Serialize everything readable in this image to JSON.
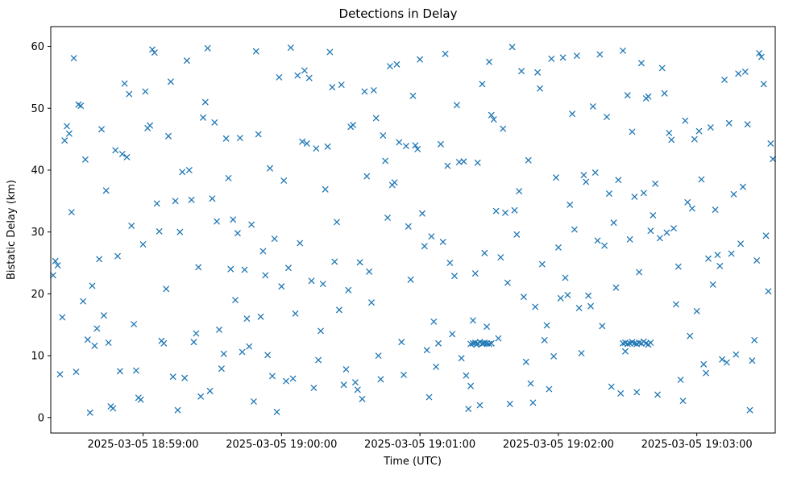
{
  "chart_data": {
    "type": "scatter",
    "title": "Detections in Delay",
    "xlabel": "Time (UTC)",
    "ylabel": "Bistatic Delay (km)",
    "marker": "x",
    "marker_color": "#1f77b4",
    "grid": false,
    "legend": "none",
    "x_unit": "seconds since 2025-03-05 18:58:00 UTC",
    "xlim": [
      20,
      334
    ],
    "ylim": [
      -2.5,
      63.2
    ],
    "x_ticks": [
      {
        "t": 60,
        "label": "2025-03-05 18:59:00"
      },
      {
        "t": 120,
        "label": "2025-03-05 19:00:00"
      },
      {
        "t": 180,
        "label": "2025-03-05 19:01:00"
      },
      {
        "t": 240,
        "label": "2025-03-05 19:02:00"
      },
      {
        "t": 300,
        "label": "2025-03-05 19:03:00"
      }
    ],
    "y_ticks": [
      0,
      10,
      20,
      30,
      40,
      50,
      60
    ],
    "points": [
      [
        21,
        23.0
      ],
      [
        22,
        25.3
      ],
      [
        23,
        24.6
      ],
      [
        24,
        7.0
      ],
      [
        25,
        16.2
      ],
      [
        26,
        44.8
      ],
      [
        27,
        47.1
      ],
      [
        28,
        45.9
      ],
      [
        29,
        33.2
      ],
      [
        30,
        58.1
      ],
      [
        31,
        7.4
      ],
      [
        32,
        50.6
      ],
      [
        33,
        50.4
      ],
      [
        34,
        18.8
      ],
      [
        35,
        41.7
      ],
      [
        36,
        12.6
      ],
      [
        37,
        0.8
      ],
      [
        38,
        21.3
      ],
      [
        39,
        11.6
      ],
      [
        40,
        14.4
      ],
      [
        41,
        25.6
      ],
      [
        42,
        46.6
      ],
      [
        43,
        16.5
      ],
      [
        44,
        36.7
      ],
      [
        45,
        12.1
      ],
      [
        46,
        1.8
      ],
      [
        47,
        1.5
      ],
      [
        48,
        43.2
      ],
      [
        49,
        26.1
      ],
      [
        50,
        7.5
      ],
      [
        51,
        42.6
      ],
      [
        52,
        54.0
      ],
      [
        53,
        42.1
      ],
      [
        54,
        52.3
      ],
      [
        55,
        31.0
      ],
      [
        56,
        15.1
      ],
      [
        57,
        7.6
      ],
      [
        58,
        3.2
      ],
      [
        59,
        2.9
      ],
      [
        60,
        28.0
      ],
      [
        61,
        52.7
      ],
      [
        62,
        46.8
      ],
      [
        63,
        47.2
      ],
      [
        64,
        59.5
      ],
      [
        65,
        59.0
      ],
      [
        66,
        34.6
      ],
      [
        67,
        30.1
      ],
      [
        68,
        12.4
      ],
      [
        69,
        12.0
      ],
      [
        70,
        20.8
      ],
      [
        71,
        45.5
      ],
      [
        72,
        54.3
      ],
      [
        73,
        6.6
      ],
      [
        74,
        35.0
      ],
      [
        75,
        1.2
      ],
      [
        76,
        30.0
      ],
      [
        77,
        39.7
      ],
      [
        78,
        6.4
      ],
      [
        79,
        57.7
      ],
      [
        80,
        40.0
      ],
      [
        81,
        35.2
      ],
      [
        82,
        12.2
      ],
      [
        83,
        13.6
      ],
      [
        84,
        24.3
      ],
      [
        85,
        3.4
      ],
      [
        86,
        48.5
      ],
      [
        87,
        51.0
      ],
      [
        88,
        59.7
      ],
      [
        89,
        4.3
      ],
      [
        90,
        35.4
      ],
      [
        91,
        47.7
      ],
      [
        92,
        31.7
      ],
      [
        93,
        14.2
      ],
      [
        94,
        7.9
      ],
      [
        95,
        10.3
      ],
      [
        96,
        45.1
      ],
      [
        97,
        38.7
      ],
      [
        98,
        24.0
      ],
      [
        99,
        32.0
      ],
      [
        100,
        19.0
      ],
      [
        101,
        29.8
      ],
      [
        102,
        45.2
      ],
      [
        103,
        10.6
      ],
      [
        104,
        23.9
      ],
      [
        105,
        16.0
      ],
      [
        106,
        11.5
      ],
      [
        107,
        31.2
      ],
      [
        108,
        2.6
      ],
      [
        109,
        59.2
      ],
      [
        110,
        45.8
      ],
      [
        111,
        16.3
      ],
      [
        112,
        26.9
      ],
      [
        113,
        23.0
      ],
      [
        114,
        10.1
      ],
      [
        115,
        40.3
      ],
      [
        116,
        6.7
      ],
      [
        117,
        28.9
      ],
      [
        118,
        0.9
      ],
      [
        119,
        55.0
      ],
      [
        120,
        21.2
      ],
      [
        121,
        38.3
      ],
      [
        122,
        5.9
      ],
      [
        123,
        24.2
      ],
      [
        124,
        59.8
      ],
      [
        125,
        6.3
      ],
      [
        126,
        16.8
      ],
      [
        127,
        55.3
      ],
      [
        128,
        28.2
      ],
      [
        129,
        44.6
      ],
      [
        130,
        56.1
      ],
      [
        131,
        44.3
      ],
      [
        132,
        54.9
      ],
      [
        133,
        22.1
      ],
      [
        134,
        4.8
      ],
      [
        135,
        43.5
      ],
      [
        136,
        9.3
      ],
      [
        137,
        14.0
      ],
      [
        138,
        21.6
      ],
      [
        139,
        36.9
      ],
      [
        140,
        43.8
      ],
      [
        141,
        59.1
      ],
      [
        142,
        53.4
      ],
      [
        143,
        25.2
      ],
      [
        144,
        31.6
      ],
      [
        145,
        17.4
      ],
      [
        146,
        53.8
      ],
      [
        147,
        5.3
      ],
      [
        148,
        7.8
      ],
      [
        149,
        20.6
      ],
      [
        150,
        47.0
      ],
      [
        151,
        47.3
      ],
      [
        152,
        5.7
      ],
      [
        153,
        4.5
      ],
      [
        154,
        25.1
      ],
      [
        155,
        3.0
      ],
      [
        156,
        52.7
      ],
      [
        157,
        39.0
      ],
      [
        158,
        23.6
      ],
      [
        159,
        18.6
      ],
      [
        160,
        52.9
      ],
      [
        161,
        48.4
      ],
      [
        162,
        10.0
      ],
      [
        163,
        6.2
      ],
      [
        164,
        45.6
      ],
      [
        165,
        41.5
      ],
      [
        166,
        32.3
      ],
      [
        167,
        56.8
      ],
      [
        168,
        37.6
      ],
      [
        169,
        38.0
      ],
      [
        170,
        57.1
      ],
      [
        171,
        44.5
      ],
      [
        172,
        12.2
      ],
      [
        173,
        6.9
      ],
      [
        174,
        43.9
      ],
      [
        175,
        30.9
      ],
      [
        176,
        22.3
      ],
      [
        177,
        52.0
      ],
      [
        178,
        44.0
      ],
      [
        179,
        43.4
      ],
      [
        180,
        57.9
      ],
      [
        181,
        33.0
      ],
      [
        182,
        27.7
      ],
      [
        183,
        10.9
      ],
      [
        184,
        3.3
      ],
      [
        185,
        29.3
      ],
      [
        186,
        15.5
      ],
      [
        187,
        8.2
      ],
      [
        188,
        12.0
      ],
      [
        189,
        44.2
      ],
      [
        190,
        28.4
      ],
      [
        191,
        58.8
      ],
      [
        192,
        40.7
      ],
      [
        193,
        25.0
      ],
      [
        194,
        13.5
      ],
      [
        195,
        22.9
      ],
      [
        196,
        50.5
      ],
      [
        197,
        41.3
      ],
      [
        198,
        9.6
      ],
      [
        199,
        41.4
      ],
      [
        200,
        6.8
      ],
      [
        201,
        1.4
      ],
      [
        202,
        5.1
      ],
      [
        203,
        15.7
      ],
      [
        204,
        23.3
      ],
      [
        205,
        41.2
      ],
      [
        206,
        2.0
      ],
      [
        207,
        53.9
      ],
      [
        208,
        26.6
      ],
      [
        209,
        14.7
      ],
      [
        210,
        57.5
      ],
      [
        211,
        48.9
      ],
      [
        212,
        48.2
      ],
      [
        213,
        33.4
      ],
      [
        214,
        12.8
      ],
      [
        215,
        25.9
      ],
      [
        216,
        46.7
      ],
      [
        217,
        33.1
      ],
      [
        218,
        21.8
      ],
      [
        219,
        2.2
      ],
      [
        220,
        59.9
      ],
      [
        221,
        33.5
      ],
      [
        222,
        29.6
      ],
      [
        223,
        36.6
      ],
      [
        224,
        56.0
      ],
      [
        225,
        19.5
      ],
      [
        226,
        9.0
      ],
      [
        227,
        41.6
      ],
      [
        228,
        5.5
      ],
      [
        229,
        2.4
      ],
      [
        230,
        17.9
      ],
      [
        231,
        55.8
      ],
      [
        232,
        53.2
      ],
      [
        233,
        24.8
      ],
      [
        234,
        12.5
      ],
      [
        235,
        14.9
      ],
      [
        236,
        4.6
      ],
      [
        237,
        58.0
      ],
      [
        238,
        9.9
      ],
      [
        239,
        38.8
      ],
      [
        240,
        27.5
      ],
      [
        241,
        19.3
      ],
      [
        242,
        58.2
      ],
      [
        243,
        22.6
      ],
      [
        244,
        19.8
      ],
      [
        245,
        34.4
      ],
      [
        246,
        49.1
      ],
      [
        247,
        30.4
      ],
      [
        248,
        58.5
      ],
      [
        249,
        17.7
      ],
      [
        250,
        10.4
      ],
      [
        251,
        39.2
      ],
      [
        252,
        38.1
      ],
      [
        253,
        19.7
      ],
      [
        254,
        18.0
      ],
      [
        255,
        50.3
      ],
      [
        256,
        39.6
      ],
      [
        257,
        28.6
      ],
      [
        258,
        58.7
      ],
      [
        259,
        14.8
      ],
      [
        260,
        27.8
      ],
      [
        261,
        48.6
      ],
      [
        262,
        36.2
      ],
      [
        263,
        5.0
      ],
      [
        264,
        31.5
      ],
      [
        265,
        21.0
      ],
      [
        266,
        38.4
      ],
      [
        267,
        3.9
      ],
      [
        268,
        59.3
      ],
      [
        269,
        10.7
      ],
      [
        270,
        52.1
      ],
      [
        271,
        28.8
      ],
      [
        272,
        46.2
      ],
      [
        273,
        35.7
      ],
      [
        274,
        4.1
      ],
      [
        275,
        23.5
      ],
      [
        276,
        57.3
      ],
      [
        277,
        36.3
      ],
      [
        278,
        51.6
      ],
      [
        279,
        51.9
      ],
      [
        280,
        30.2
      ],
      [
        281,
        32.7
      ],
      [
        282,
        37.8
      ],
      [
        283,
        3.7
      ],
      [
        284,
        29.0
      ],
      [
        285,
        56.5
      ],
      [
        286,
        52.4
      ],
      [
        287,
        29.9
      ],
      [
        288,
        46.0
      ],
      [
        289,
        44.9
      ],
      [
        290,
        30.6
      ],
      [
        291,
        18.3
      ],
      [
        292,
        24.4
      ],
      [
        293,
        6.1
      ],
      [
        294,
        2.7
      ],
      [
        295,
        48.0
      ],
      [
        296,
        34.8
      ],
      [
        297,
        13.2
      ],
      [
        298,
        33.8
      ],
      [
        299,
        45.0
      ],
      [
        300,
        17.2
      ],
      [
        301,
        46.3
      ],
      [
        302,
        38.5
      ],
      [
        303,
        8.6
      ],
      [
        304,
        7.2
      ],
      [
        305,
        25.7
      ],
      [
        306,
        46.9
      ],
      [
        307,
        21.5
      ],
      [
        308,
        33.6
      ],
      [
        309,
        26.3
      ],
      [
        310,
        24.5
      ],
      [
        311,
        9.4
      ],
      [
        312,
        54.6
      ],
      [
        313,
        8.9
      ],
      [
        314,
        47.6
      ],
      [
        315,
        26.5
      ],
      [
        316,
        36.1
      ],
      [
        317,
        10.2
      ],
      [
        318,
        55.6
      ],
      [
        319,
        28.1
      ],
      [
        320,
        37.3
      ],
      [
        321,
        55.9
      ],
      [
        322,
        47.4
      ],
      [
        323,
        1.2
      ],
      [
        324,
        9.2
      ],
      [
        325,
        12.5
      ],
      [
        326,
        25.4
      ],
      [
        327,
        58.9
      ],
      [
        328,
        58.3
      ],
      [
        329,
        53.9
      ],
      [
        330,
        29.4
      ],
      [
        331,
        20.4
      ],
      [
        332,
        44.3
      ],
      [
        333,
        41.8
      ],
      [
        202,
        11.9
      ],
      [
        203,
        12.0
      ],
      [
        204,
        12.1
      ],
      [
        204.5,
        11.8
      ],
      [
        205,
        12.0
      ],
      [
        206,
        12.2
      ],
      [
        207,
        11.9
      ],
      [
        207.5,
        12.0
      ],
      [
        208,
        12.1
      ],
      [
        209,
        12.0
      ],
      [
        210,
        11.9
      ],
      [
        211,
        12.0
      ],
      [
        268,
        12.0
      ],
      [
        269,
        12.1
      ],
      [
        270,
        11.9
      ],
      [
        271,
        12.0
      ],
      [
        272,
        12.2
      ],
      [
        273,
        12.0
      ],
      [
        274,
        11.9
      ],
      [
        275,
        12.1
      ],
      [
        276,
        12.0
      ],
      [
        277,
        12.3
      ],
      [
        278,
        12.0
      ],
      [
        279,
        11.8
      ],
      [
        280,
        12.1
      ]
    ]
  }
}
